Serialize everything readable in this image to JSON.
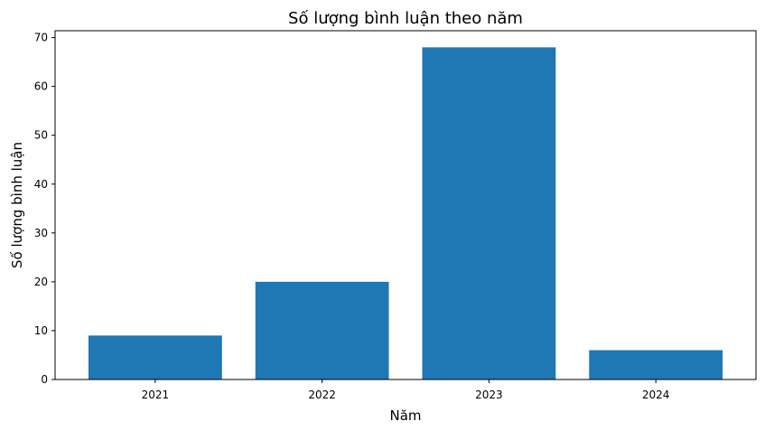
{
  "chart_data": {
    "type": "bar",
    "title": "Số lượng bình luận theo năm",
    "xlabel": "Năm",
    "ylabel": "Số lượng bình luận",
    "categories": [
      "2021",
      "2022",
      "2023",
      "2024"
    ],
    "values": [
      9,
      20,
      68,
      6
    ],
    "ylim": [
      0,
      71.4
    ],
    "yticks": [
      0,
      10,
      20,
      30,
      40,
      50,
      60,
      70
    ],
    "bar_color": "#1f77b4",
    "grid": false,
    "legend": "none"
  }
}
